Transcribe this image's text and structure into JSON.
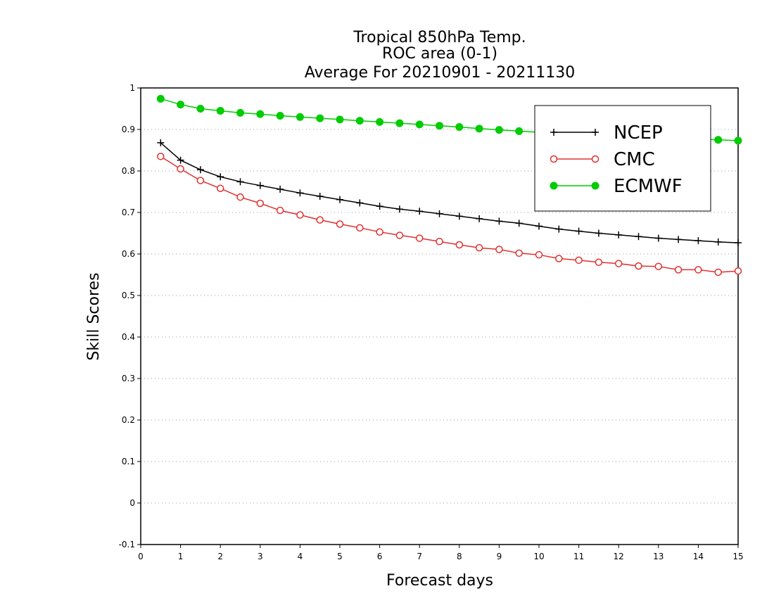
{
  "chart_data": {
    "type": "line",
    "title_lines": [
      "Tropical 850hPa Temp.",
      "ROC area (0-1)",
      "Average For 20210901 - 20211130"
    ],
    "xlabel": "Forecast days",
    "ylabel": "Skill Scores",
    "xlim": [
      0,
      15
    ],
    "ylim": [
      -0.1,
      1
    ],
    "xticks": [
      "0",
      "1",
      "2",
      "3",
      "4",
      "5",
      "6",
      "7",
      "8",
      "9",
      "10",
      "11",
      "12",
      "13",
      "14",
      "15"
    ],
    "yticks": [
      "-0.1",
      "0",
      "0.1",
      "0.2",
      "0.3",
      "0.4",
      "0.5",
      "0.6",
      "0.7",
      "0.8",
      "0.9",
      "1"
    ],
    "grid": "horizontal-dotted",
    "legend_position": "top-right",
    "x": [
      0.5,
      1,
      1.5,
      2,
      2.5,
      3,
      3.5,
      4,
      4.5,
      5,
      5.5,
      6,
      6.5,
      7,
      7.5,
      8,
      8.5,
      9,
      9.5,
      10,
      10.5,
      11,
      11.5,
      12,
      12.5,
      13,
      13.5,
      14,
      14.5,
      15
    ],
    "series": [
      {
        "name": "NCEP",
        "color": "#000000",
        "marker": "plus",
        "values": [
          0.868,
          0.826,
          0.803,
          0.786,
          0.774,
          0.765,
          0.756,
          0.747,
          0.739,
          0.731,
          0.723,
          0.715,
          0.708,
          0.703,
          0.697,
          0.691,
          0.685,
          0.679,
          0.674,
          0.667,
          0.66,
          0.655,
          0.65,
          0.646,
          0.642,
          0.638,
          0.635,
          0.632,
          0.629,
          0.627
        ]
      },
      {
        "name": "CMC",
        "color": "#e03030",
        "marker": "open-circle",
        "values": [
          0.835,
          0.805,
          0.777,
          0.758,
          0.737,
          0.722,
          0.705,
          0.694,
          0.682,
          0.672,
          0.663,
          0.653,
          0.645,
          0.638,
          0.63,
          0.622,
          0.615,
          0.611,
          0.602,
          0.598,
          0.589,
          0.585,
          0.58,
          0.577,
          0.571,
          0.57,
          0.562,
          0.562,
          0.556,
          0.559
        ]
      },
      {
        "name": "ECMWF",
        "color": "#00cc00",
        "marker": "filled-circle",
        "values": [
          0.974,
          0.96,
          0.95,
          0.945,
          0.94,
          0.937,
          0.933,
          0.93,
          0.927,
          0.924,
          0.921,
          0.918,
          0.915,
          0.912,
          0.909,
          0.906,
          0.902,
          0.899,
          0.896,
          0.893,
          0.89,
          0.888,
          0.886,
          0.884,
          0.882,
          0.88,
          0.878,
          0.877,
          0.875,
          0.873
        ]
      }
    ]
  }
}
